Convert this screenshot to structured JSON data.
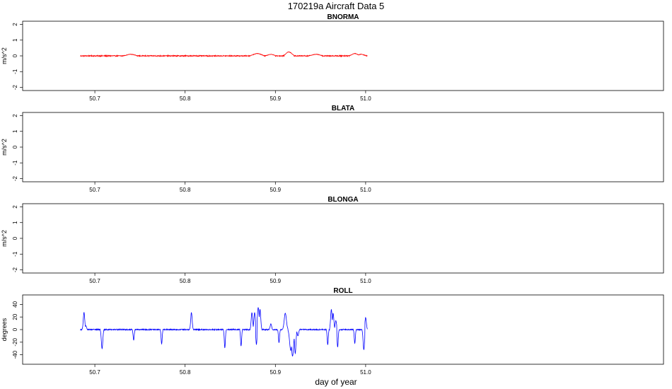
{
  "figure": {
    "title": "170219a   Aircraft Data 5",
    "xlabel": "day of year"
  },
  "chart_data": [
    {
      "type": "line",
      "title": "BNORMA",
      "ylabel": "m/s^2",
      "xlim": [
        50.62,
        51.33
      ],
      "ylim": [
        -2.2,
        2.2
      ],
      "x_ticks": [
        50.7,
        50.8,
        50.9,
        51.0
      ],
      "x_tick_labels": [
        "50.7",
        "50.8",
        "50.9",
        "51.0"
      ],
      "y_ticks": [
        -2,
        -1,
        0,
        1,
        2
      ],
      "y_tick_labels": [
        "-2",
        "-1",
        "0",
        "1",
        "2"
      ],
      "color": "#ff0000",
      "baseline": 0,
      "x_range": [
        50.684,
        51.002
      ],
      "noise": 0.03,
      "features": [
        {
          "x": 50.74,
          "y": 0.1,
          "w": 0.004
        },
        {
          "x": 50.88,
          "y": 0.15,
          "w": 0.004
        },
        {
          "x": 50.895,
          "y": 0.1,
          "w": 0.003
        },
        {
          "x": 50.915,
          "y": 0.25,
          "w": 0.003
        },
        {
          "x": 50.915,
          "y": -0.2,
          "w": 0.003
        },
        {
          "x": 50.945,
          "y": 0.1,
          "w": 0.004
        },
        {
          "x": 50.988,
          "y": 0.15,
          "w": 0.003
        },
        {
          "x": 50.995,
          "y": 0.1,
          "w": 0.003
        }
      ]
    },
    {
      "type": "line",
      "title": "BLATA",
      "ylabel": "m/s^2",
      "xlim": [
        50.62,
        51.33
      ],
      "ylim": [
        -2.2,
        2.2
      ],
      "x_ticks": [
        50.7,
        50.8,
        50.9,
        51.0
      ],
      "x_tick_labels": [
        "50.7",
        "50.8",
        "50.9",
        "51.0"
      ],
      "y_ticks": [
        -2,
        -1,
        0,
        1,
        2
      ],
      "y_tick_labels": [
        "-2",
        "-1",
        "0",
        "1",
        "2"
      ],
      "color": "#000000",
      "empty": true
    },
    {
      "type": "line",
      "title": "BLONGA",
      "ylabel": "m/s^2",
      "xlim": [
        50.62,
        51.33
      ],
      "ylim": [
        -2.2,
        2.2
      ],
      "x_ticks": [
        50.7,
        50.8,
        50.9,
        51.0
      ],
      "x_tick_labels": [
        "50.7",
        "50.8",
        "50.9",
        "51.0"
      ],
      "y_ticks": [
        -2,
        -1,
        0,
        1,
        2
      ],
      "y_tick_labels": [
        "-2",
        "-1",
        "0",
        "1",
        "2"
      ],
      "color": "#000000",
      "empty": true
    },
    {
      "type": "line",
      "title": "ROLL",
      "ylabel": "degrees",
      "xlim": [
        50.62,
        51.33
      ],
      "ylim": [
        -55,
        55
      ],
      "x_ticks": [
        50.7,
        50.8,
        50.9,
        51.0
      ],
      "x_tick_labels": [
        "50.7",
        "50.8",
        "50.9",
        "51.0"
      ],
      "y_ticks": [
        -40,
        -20,
        0,
        20,
        40
      ],
      "y_tick_labels": [
        "-40",
        "-20",
        "0",
        "20",
        "40"
      ],
      "color": "#0000ff",
      "baseline": 0,
      "x_range": [
        50.684,
        51.002
      ],
      "noise": 0.8,
      "features": [
        {
          "x": 50.688,
          "y": 27,
          "w": 0.0008
        },
        {
          "x": 50.69,
          "y": 6,
          "w": 0.0008
        },
        {
          "x": 50.708,
          "y": -30,
          "w": 0.0008
        },
        {
          "x": 50.743,
          "y": -17,
          "w": 0.0006
        },
        {
          "x": 50.774,
          "y": -23,
          "w": 0.0006
        },
        {
          "x": 50.807,
          "y": 27,
          "w": 0.0008
        },
        {
          "x": 50.844,
          "y": -29,
          "w": 0.0006
        },
        {
          "x": 50.862,
          "y": -26,
          "w": 0.0006
        },
        {
          "x": 50.874,
          "y": 27,
          "w": 0.0008
        },
        {
          "x": 50.877,
          "y": 27,
          "w": 0.0008
        },
        {
          "x": 50.879,
          "y": -24,
          "w": 0.0006
        },
        {
          "x": 50.881,
          "y": 35,
          "w": 0.001
        },
        {
          "x": 50.883,
          "y": 32,
          "w": 0.0008
        },
        {
          "x": 50.895,
          "y": 9,
          "w": 0.0008
        },
        {
          "x": 50.904,
          "y": -21,
          "w": 0.0006
        },
        {
          "x": 50.911,
          "y": 26,
          "w": 0.0012
        },
        {
          "x": 50.917,
          "y": -33,
          "w": 0.0012
        },
        {
          "x": 50.919,
          "y": -42,
          "w": 0.0012
        },
        {
          "x": 50.922,
          "y": -38,
          "w": 0.0008
        },
        {
          "x": 50.925,
          "y": -10,
          "w": 0.0008
        },
        {
          "x": 50.958,
          "y": -24,
          "w": 0.0006
        },
        {
          "x": 50.962,
          "y": 32,
          "w": 0.0008
        },
        {
          "x": 50.964,
          "y": 26,
          "w": 0.0008
        },
        {
          "x": 50.967,
          "y": 14,
          "w": 0.0008
        },
        {
          "x": 50.969,
          "y": -28,
          "w": 0.0006
        },
        {
          "x": 50.988,
          "y": -22,
          "w": 0.0006
        },
        {
          "x": 50.998,
          "y": -32,
          "w": 0.0008
        },
        {
          "x": 51.0,
          "y": 19,
          "w": 0.0008
        }
      ]
    }
  ]
}
